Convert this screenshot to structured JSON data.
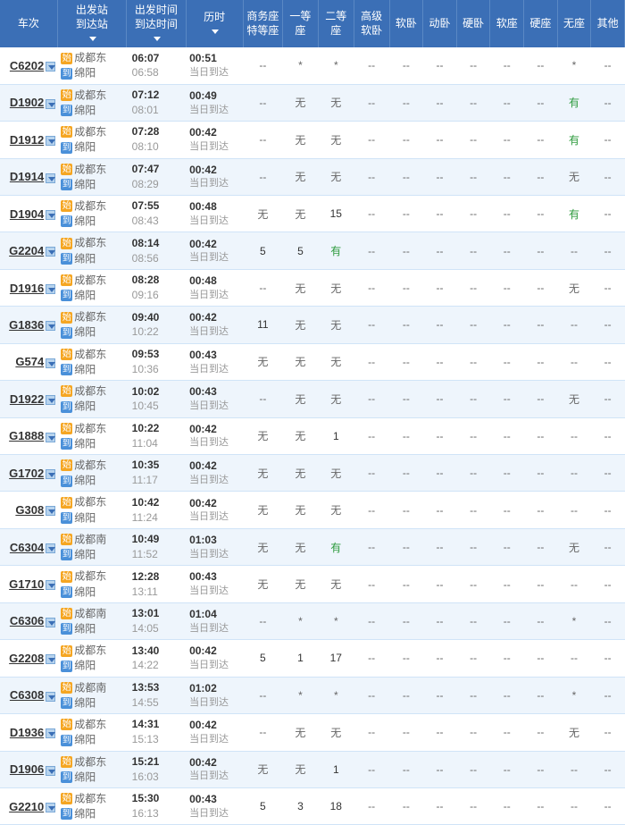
{
  "headers": [
    "车次",
    "出发站\n到达站",
    "出发时间\n到达时间",
    "历时",
    "商务座\n特等座",
    "一等座",
    "二等座",
    "高级\n软卧",
    "软卧",
    "动卧",
    "硬卧",
    "软座",
    "硬座",
    "无座",
    "其他"
  ],
  "badge_dep": "始",
  "badge_arr": "到",
  "arrival_note": "当日到达",
  "trains": [
    {
      "no": "C6202",
      "dep_st": "成都东",
      "arr_st": "绵阳",
      "dep_t": "06:07",
      "arr_t": "06:58",
      "dur": "00:51",
      "seats": [
        "--",
        "*",
        "*",
        "--",
        "--",
        "--",
        "--",
        "--",
        "--",
        "*",
        "--"
      ]
    },
    {
      "no": "D1902",
      "dep_st": "成都东",
      "arr_st": "绵阳",
      "dep_t": "07:12",
      "arr_t": "08:01",
      "dur": "00:49",
      "seats": [
        "--",
        "无",
        "无",
        "--",
        "--",
        "--",
        "--",
        "--",
        "--",
        "有",
        "--"
      ]
    },
    {
      "no": "D1912",
      "dep_st": "成都东",
      "arr_st": "绵阳",
      "dep_t": "07:28",
      "arr_t": "08:10",
      "dur": "00:42",
      "seats": [
        "--",
        "无",
        "无",
        "--",
        "--",
        "--",
        "--",
        "--",
        "--",
        "有",
        "--"
      ]
    },
    {
      "no": "D1914",
      "dep_st": "成都东",
      "arr_st": "绵阳",
      "dep_t": "07:47",
      "arr_t": "08:29",
      "dur": "00:42",
      "seats": [
        "--",
        "无",
        "无",
        "--",
        "--",
        "--",
        "--",
        "--",
        "--",
        "无",
        "--"
      ]
    },
    {
      "no": "D1904",
      "dep_st": "成都东",
      "arr_st": "绵阳",
      "dep_t": "07:55",
      "arr_t": "08:43",
      "dur": "00:48",
      "seats": [
        "无",
        "无",
        "15",
        "--",
        "--",
        "--",
        "--",
        "--",
        "--",
        "有",
        "--"
      ]
    },
    {
      "no": "G2204",
      "dep_st": "成都东",
      "arr_st": "绵阳",
      "dep_t": "08:14",
      "arr_t": "08:56",
      "dur": "00:42",
      "seats": [
        "5",
        "5",
        "有",
        "--",
        "--",
        "--",
        "--",
        "--",
        "--",
        "--",
        "--"
      ]
    },
    {
      "no": "D1916",
      "dep_st": "成都东",
      "arr_st": "绵阳",
      "dep_t": "08:28",
      "arr_t": "09:16",
      "dur": "00:48",
      "seats": [
        "--",
        "无",
        "无",
        "--",
        "--",
        "--",
        "--",
        "--",
        "--",
        "无",
        "--"
      ]
    },
    {
      "no": "G1836",
      "dep_st": "成都东",
      "arr_st": "绵阳",
      "dep_t": "09:40",
      "arr_t": "10:22",
      "dur": "00:42",
      "seats": [
        "11",
        "无",
        "无",
        "--",
        "--",
        "--",
        "--",
        "--",
        "--",
        "--",
        "--"
      ]
    },
    {
      "no": "G574",
      "dep_st": "成都东",
      "arr_st": "绵阳",
      "dep_t": "09:53",
      "arr_t": "10:36",
      "dur": "00:43",
      "seats": [
        "无",
        "无",
        "无",
        "--",
        "--",
        "--",
        "--",
        "--",
        "--",
        "--",
        "--"
      ]
    },
    {
      "no": "D1922",
      "dep_st": "成都东",
      "arr_st": "绵阳",
      "dep_t": "10:02",
      "arr_t": "10:45",
      "dur": "00:43",
      "seats": [
        "--",
        "无",
        "无",
        "--",
        "--",
        "--",
        "--",
        "--",
        "--",
        "无",
        "--"
      ]
    },
    {
      "no": "G1888",
      "dep_st": "成都东",
      "arr_st": "绵阳",
      "dep_t": "10:22",
      "arr_t": "11:04",
      "dur": "00:42",
      "seats": [
        "无",
        "无",
        "1",
        "--",
        "--",
        "--",
        "--",
        "--",
        "--",
        "--",
        "--"
      ]
    },
    {
      "no": "G1702",
      "dep_st": "成都东",
      "arr_st": "绵阳",
      "dep_t": "10:35",
      "arr_t": "11:17",
      "dur": "00:42",
      "seats": [
        "无",
        "无",
        "无",
        "--",
        "--",
        "--",
        "--",
        "--",
        "--",
        "--",
        "--"
      ]
    },
    {
      "no": "G308",
      "dep_st": "成都东",
      "arr_st": "绵阳",
      "dep_t": "10:42",
      "arr_t": "11:24",
      "dur": "00:42",
      "seats": [
        "无",
        "无",
        "无",
        "--",
        "--",
        "--",
        "--",
        "--",
        "--",
        "--",
        "--"
      ]
    },
    {
      "no": "C6304",
      "dep_st": "成都南",
      "arr_st": "绵阳",
      "dep_t": "10:49",
      "arr_t": "11:52",
      "dur": "01:03",
      "seats": [
        "无",
        "无",
        "有",
        "--",
        "--",
        "--",
        "--",
        "--",
        "--",
        "无",
        "--"
      ]
    },
    {
      "no": "G1710",
      "dep_st": "成都东",
      "arr_st": "绵阳",
      "dep_t": "12:28",
      "arr_t": "13:11",
      "dur": "00:43",
      "seats": [
        "无",
        "无",
        "无",
        "--",
        "--",
        "--",
        "--",
        "--",
        "--",
        "--",
        "--"
      ]
    },
    {
      "no": "C6306",
      "dep_st": "成都南",
      "arr_st": "绵阳",
      "dep_t": "13:01",
      "arr_t": "14:05",
      "dur": "01:04",
      "seats": [
        "--",
        "*",
        "*",
        "--",
        "--",
        "--",
        "--",
        "--",
        "--",
        "*",
        "--"
      ]
    },
    {
      "no": "G2208",
      "dep_st": "成都东",
      "arr_st": "绵阳",
      "dep_t": "13:40",
      "arr_t": "14:22",
      "dur": "00:42",
      "seats": [
        "5",
        "1",
        "17",
        "--",
        "--",
        "--",
        "--",
        "--",
        "--",
        "--",
        "--"
      ]
    },
    {
      "no": "C6308",
      "dep_st": "成都南",
      "arr_st": "绵阳",
      "dep_t": "13:53",
      "arr_t": "14:55",
      "dur": "01:02",
      "seats": [
        "--",
        "*",
        "*",
        "--",
        "--",
        "--",
        "--",
        "--",
        "--",
        "*",
        "--"
      ]
    },
    {
      "no": "D1936",
      "dep_st": "成都东",
      "arr_st": "绵阳",
      "dep_t": "14:31",
      "arr_t": "15:13",
      "dur": "00:42",
      "seats": [
        "--",
        "无",
        "无",
        "--",
        "--",
        "--",
        "--",
        "--",
        "--",
        "无",
        "--"
      ]
    },
    {
      "no": "D1906",
      "dep_st": "成都东",
      "arr_st": "绵阳",
      "dep_t": "15:21",
      "arr_t": "16:03",
      "dur": "00:42",
      "seats": [
        "无",
        "无",
        "1",
        "--",
        "--",
        "--",
        "--",
        "--",
        "--",
        "--",
        "--"
      ]
    },
    {
      "no": "G2210",
      "dep_st": "成都东",
      "arr_st": "绵阳",
      "dep_t": "15:30",
      "arr_t": "16:13",
      "dur": "00:43",
      "seats": [
        "5",
        "3",
        "18",
        "--",
        "--",
        "--",
        "--",
        "--",
        "--",
        "--",
        "--"
      ]
    }
  ],
  "col_widths": [
    "58px",
    "70px",
    "60px",
    "58px",
    "40px",
    "36px",
    "36px",
    "36px",
    "34px",
    "34px",
    "34px",
    "34px",
    "34px",
    "34px",
    "34px"
  ],
  "colors": {
    "header_bg": "#3b6fb6",
    "row_alt": "#eef5fc",
    "border": "#d0e4f7",
    "you": "#2e9b3e"
  }
}
